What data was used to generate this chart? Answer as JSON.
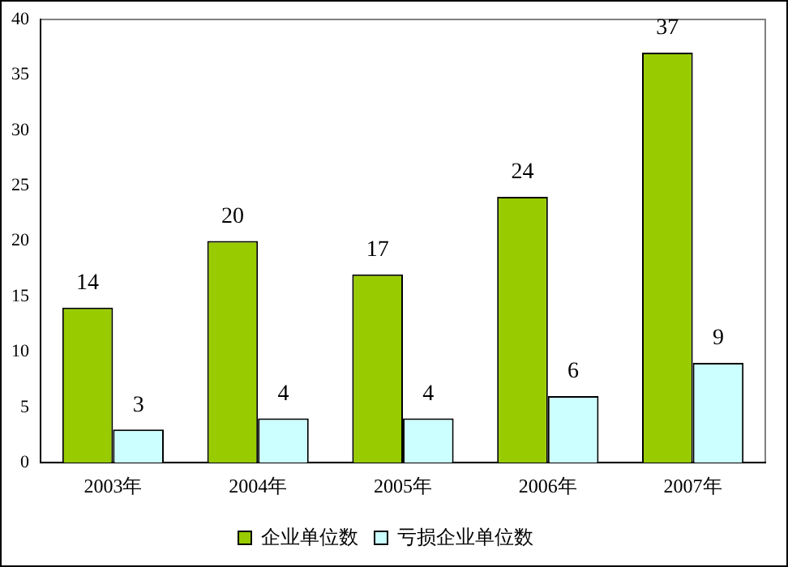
{
  "chart_data": {
    "type": "bar",
    "categories": [
      "2003年",
      "2004年",
      "2005年",
      "2006年",
      "2007年"
    ],
    "series": [
      {
        "name": "企业单位数",
        "color": "#99cc00",
        "values": [
          14,
          20,
          17,
          24,
          37
        ]
      },
      {
        "name": "亏损企业单位数",
        "color": "#ccffff",
        "values": [
          3,
          4,
          4,
          6,
          9
        ]
      }
    ],
    "ylim": [
      0,
      40
    ],
    "yticks": [
      0,
      5,
      10,
      15,
      20,
      25,
      30,
      35,
      40
    ],
    "grid": false,
    "legend": "bottom",
    "data_labels": true
  }
}
